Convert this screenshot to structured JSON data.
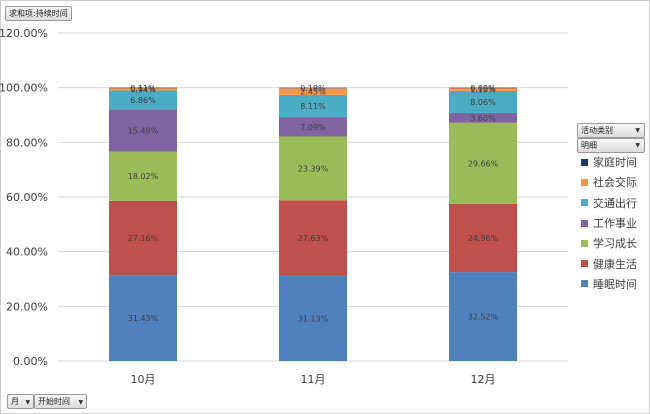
{
  "field_buttons": {
    "value_field": "求和项:持续时间",
    "category_field": "活动类别",
    "detail_field": "明细",
    "axis_field_1": "月",
    "axis_field_2": "开始时间"
  },
  "icons": {
    "dropdown": "dropdown-arrow-icon"
  },
  "colors": {
    "家庭时间": "#1F3864",
    "社会交际": "#F79646",
    "交通出行": "#4BACC6",
    "工作事业": "#8064A2",
    "学习成长": "#9BBB59",
    "健康生活": "#C0504D",
    "睡眠时间": "#4F81BD"
  },
  "chart_data": {
    "type": "bar",
    "stacked": true,
    "categories": [
      "10月",
      "11月",
      "12月"
    ],
    "y_ticks": [
      "0.00%",
      "20.00%",
      "40.00%",
      "60.00%",
      "80.00%",
      "100.00%",
      "120.00%"
    ],
    "ylim": [
      0,
      120
    ],
    "grid": true,
    "legend_position": "right",
    "series": [
      {
        "name": "睡眠时间",
        "values": [
          31.43,
          31.13,
          32.52
        ],
        "labels": [
          "31.43%",
          "31.13%",
          "32.52%"
        ]
      },
      {
        "name": "健康生活",
        "values": [
          27.16,
          27.63,
          24.96
        ],
        "labels": [
          "27.16%",
          "27.63%",
          "24.96%"
        ]
      },
      {
        "name": "学习成长",
        "values": [
          18.02,
          23.39,
          29.66
        ],
        "labels": [
          "18.02%",
          "23.39%",
          "29.66%"
        ]
      },
      {
        "name": "工作事业",
        "values": [
          15.48,
          7.09,
          3.6
        ],
        "labels": [
          "15.48%",
          "7.09%",
          "3.60%"
        ]
      },
      {
        "name": "交通出行",
        "values": [
          6.86,
          8.11,
          8.06
        ],
        "labels": [
          "6.86%",
          "8.11%",
          "8.06%"
        ]
      },
      {
        "name": "社会交际",
        "values": [
          0.94,
          2.45,
          1.1
        ],
        "labels": [
          "0.94%",
          "2.45%",
          "1.10%"
        ]
      },
      {
        "name": "家庭时间",
        "values": [
          0.11,
          0.18,
          0.09
        ],
        "labels": [
          "0.11%",
          "0.18%",
          "0.09%"
        ]
      }
    ]
  }
}
